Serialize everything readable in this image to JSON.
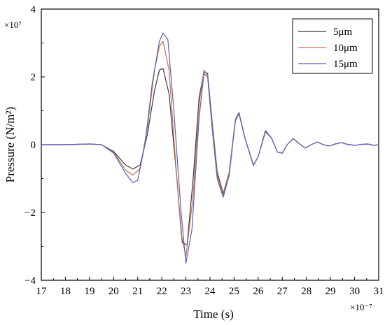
{
  "chart_data": {
    "type": "line",
    "title": "",
    "xlabel": "Time (s)",
    "ylabel": "Pressure (N/m²)",
    "x_multiplier": "×10⁻⁷",
    "y_multiplier": "×10⁷",
    "xlim": [
      17,
      31
    ],
    "ylim": [
      -4,
      4
    ],
    "x_ticks": [
      "17",
      "18",
      "19",
      "20",
      "21",
      "22",
      "23",
      "24",
      "25",
      "26",
      "27",
      "28",
      "29",
      "30",
      "31"
    ],
    "y_ticks": [
      "4",
      "2",
      "0",
      "−2",
      "−4"
    ],
    "grid": false,
    "legend_position": "top-right",
    "series": [
      {
        "name": "5μm",
        "color": "#3a3a3a",
        "points": [
          [
            17,
            0
          ],
          [
            18,
            0
          ],
          [
            19,
            0.02
          ],
          [
            19.5,
            0
          ],
          [
            20,
            -0.2
          ],
          [
            20.5,
            -0.6
          ],
          [
            20.8,
            -0.72
          ],
          [
            21.1,
            -0.6
          ],
          [
            21.4,
            0.3
          ],
          [
            21.7,
            1.6
          ],
          [
            21.9,
            2.2
          ],
          [
            22.05,
            2.25
          ],
          [
            22.3,
            1.5
          ],
          [
            22.6,
            -0.8
          ],
          [
            22.85,
            -2.9
          ],
          [
            23.05,
            -2.95
          ],
          [
            23.3,
            -1.0
          ],
          [
            23.55,
            1.4
          ],
          [
            23.75,
            2.15
          ],
          [
            23.9,
            2.1
          ],
          [
            24.1,
            0.6
          ],
          [
            24.3,
            -0.8
          ],
          [
            24.55,
            -1.45
          ],
          [
            24.8,
            -0.8
          ],
          [
            25.05,
            0.7
          ],
          [
            25.2,
            0.92
          ],
          [
            25.45,
            0.2
          ],
          [
            25.8,
            -0.6
          ],
          [
            26.0,
            -0.35
          ],
          [
            26.3,
            0.38
          ],
          [
            26.55,
            0.2
          ],
          [
            26.8,
            -0.22
          ],
          [
            27.0,
            -0.25
          ],
          [
            27.2,
            0.0
          ],
          [
            27.45,
            0.18
          ],
          [
            27.7,
            0.03
          ],
          [
            27.95,
            -0.1
          ],
          [
            28.2,
            0.0
          ],
          [
            28.45,
            0.08
          ],
          [
            28.7,
            0.0
          ],
          [
            28.95,
            -0.04
          ],
          [
            29.2,
            0.02
          ],
          [
            29.45,
            0.06
          ],
          [
            29.7,
            0.01
          ],
          [
            30.0,
            -0.02
          ],
          [
            30.3,
            0.01
          ],
          [
            30.55,
            0.02
          ],
          [
            30.8,
            -0.02
          ],
          [
            31,
            0
          ]
        ]
      },
      {
        "name": "10μm",
        "color": "#c8704a",
        "points": [
          [
            17,
            0
          ],
          [
            18,
            0
          ],
          [
            19,
            0.02
          ],
          [
            19.5,
            0
          ],
          [
            20,
            -0.22
          ],
          [
            20.5,
            -0.75
          ],
          [
            20.8,
            -0.9
          ],
          [
            21.1,
            -0.7
          ],
          [
            21.4,
            0.5
          ],
          [
            21.7,
            2.2
          ],
          [
            21.9,
            2.9
          ],
          [
            22.05,
            3.05
          ],
          [
            22.3,
            2.2
          ],
          [
            22.55,
            -0.3
          ],
          [
            22.8,
            -2.6
          ],
          [
            23.0,
            -3.3
          ],
          [
            23.3,
            -1.5
          ],
          [
            23.55,
            1.2
          ],
          [
            23.75,
            2.2
          ],
          [
            23.9,
            2.05
          ],
          [
            24.1,
            0.5
          ],
          [
            24.3,
            -0.9
          ],
          [
            24.55,
            -1.5
          ],
          [
            24.8,
            -0.8
          ],
          [
            25.05,
            0.75
          ],
          [
            25.2,
            0.95
          ],
          [
            25.45,
            0.2
          ],
          [
            25.8,
            -0.6
          ],
          [
            26.0,
            -0.35
          ],
          [
            26.3,
            0.4
          ],
          [
            26.55,
            0.2
          ],
          [
            26.8,
            -0.22
          ],
          [
            27.0,
            -0.25
          ],
          [
            27.2,
            0.0
          ],
          [
            27.45,
            0.18
          ],
          [
            27.7,
            0.03
          ],
          [
            27.95,
            -0.1
          ],
          [
            28.2,
            0.0
          ],
          [
            28.45,
            0.08
          ],
          [
            28.7,
            0.0
          ],
          [
            28.95,
            -0.04
          ],
          [
            29.2,
            0.02
          ],
          [
            29.45,
            0.06
          ],
          [
            29.7,
            0.01
          ],
          [
            30.0,
            -0.02
          ],
          [
            30.3,
            0.01
          ],
          [
            30.55,
            0.02
          ],
          [
            30.8,
            -0.02
          ],
          [
            31,
            0
          ]
        ]
      },
      {
        "name": "15μm",
        "color": "#5a5fc4",
        "points": [
          [
            17,
            0
          ],
          [
            18,
            0
          ],
          [
            19,
            0.02
          ],
          [
            19.5,
            0
          ],
          [
            20,
            -0.25
          ],
          [
            20.5,
            -0.85
          ],
          [
            20.8,
            -1.12
          ],
          [
            21.0,
            -1.05
          ],
          [
            21.3,
            0.0
          ],
          [
            21.6,
            1.8
          ],
          [
            21.9,
            3.05
          ],
          [
            22.05,
            3.3
          ],
          [
            22.25,
            3.1
          ],
          [
            22.5,
            1.0
          ],
          [
            22.8,
            -2.0
          ],
          [
            23.0,
            -3.5
          ],
          [
            23.25,
            -2.5
          ],
          [
            23.55,
            0.8
          ],
          [
            23.75,
            2.1
          ],
          [
            23.9,
            2.0
          ],
          [
            24.1,
            0.4
          ],
          [
            24.3,
            -1.0
          ],
          [
            24.55,
            -1.55
          ],
          [
            24.8,
            -0.9
          ],
          [
            25.05,
            0.7
          ],
          [
            25.2,
            0.95
          ],
          [
            25.45,
            0.2
          ],
          [
            25.8,
            -0.62
          ],
          [
            26.0,
            -0.35
          ],
          [
            26.3,
            0.42
          ],
          [
            26.55,
            0.2
          ],
          [
            26.8,
            -0.22
          ],
          [
            27.0,
            -0.25
          ],
          [
            27.2,
            0.0
          ],
          [
            27.45,
            0.18
          ],
          [
            27.7,
            0.03
          ],
          [
            27.95,
            -0.1
          ],
          [
            28.2,
            0.0
          ],
          [
            28.45,
            0.08
          ],
          [
            28.7,
            0.0
          ],
          [
            28.95,
            -0.04
          ],
          [
            29.2,
            0.02
          ],
          [
            29.45,
            0.06
          ],
          [
            29.7,
            0.01
          ],
          [
            30.0,
            -0.02
          ],
          [
            30.3,
            0.01
          ],
          [
            30.55,
            0.02
          ],
          [
            30.8,
            -0.02
          ],
          [
            31,
            0
          ]
        ]
      }
    ]
  }
}
